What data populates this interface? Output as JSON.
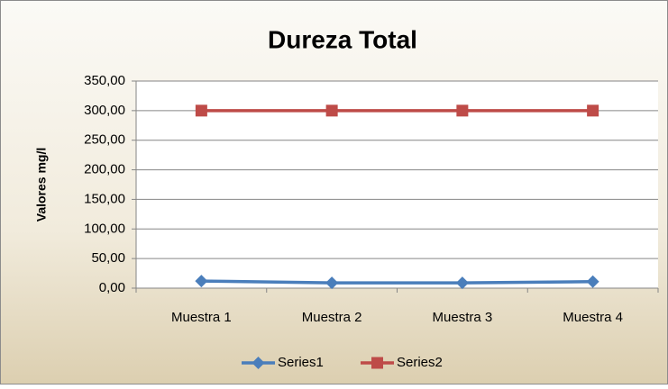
{
  "chart_data": {
    "type": "line",
    "title": "Dureza Total",
    "ylabel": "Valores mg/l",
    "categories": [
      "Muestra 1",
      "Muestra 2",
      "Muestra 3",
      "Muestra 4"
    ],
    "series": [
      {
        "name": "Series1",
        "color": "#4a7ebb",
        "marker": "diamond",
        "values": [
          12,
          9,
          9,
          11
        ]
      },
      {
        "name": "Series2",
        "color": "#be4b48",
        "marker": "square",
        "values": [
          300,
          300,
          300,
          300
        ]
      }
    ],
    "ylim": [
      0,
      350
    ],
    "yticks": [
      {
        "value": 0,
        "label": "0,00"
      },
      {
        "value": 50,
        "label": "50,00"
      },
      {
        "value": 100,
        "label": "100,00"
      },
      {
        "value": 150,
        "label": "150,00"
      },
      {
        "value": 200,
        "label": "200,00"
      },
      {
        "value": 250,
        "label": "250,00"
      },
      {
        "value": 300,
        "label": "300,00"
      },
      {
        "value": 350,
        "label": "350,00"
      }
    ],
    "grid": true,
    "legend": "bottom"
  }
}
